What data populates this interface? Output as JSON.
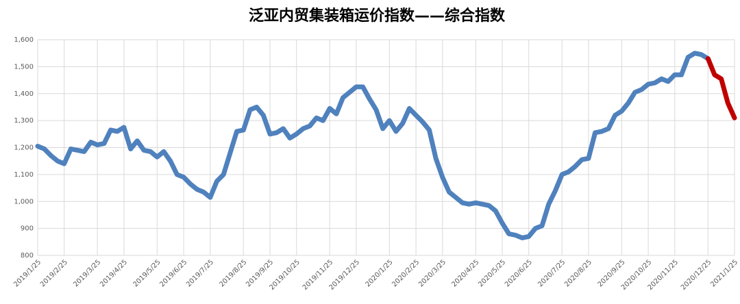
{
  "chart_data": {
    "type": "line",
    "title": "泛亚内贸集装箱运价指数——综合指数",
    "categories": [
      "2019/1/25",
      null,
      null,
      null,
      "2019/2/25",
      null,
      null,
      null,
      null,
      "2019/3/25",
      null,
      null,
      null,
      "2019/4/25",
      null,
      null,
      null,
      null,
      "2019/5/25",
      null,
      null,
      null,
      "2019/6/25",
      null,
      null,
      null,
      "2019/7/25",
      null,
      null,
      null,
      null,
      "2019/8/25",
      null,
      null,
      null,
      "2019/9/25",
      null,
      null,
      null,
      "2019/10/25",
      null,
      null,
      null,
      null,
      "2019/11/25",
      null,
      null,
      null,
      "2019/12/25",
      null,
      null,
      null,
      null,
      "2020/1/25",
      null,
      null,
      null,
      "2020/2/25",
      null,
      null,
      null,
      "2020/3/25",
      null,
      null,
      null,
      null,
      "2020/4/25",
      null,
      null,
      null,
      "2020/5/25",
      null,
      null,
      null,
      "2020/6/25",
      null,
      null,
      null,
      null,
      "2020/7/25",
      null,
      null,
      null,
      "2020/8/25",
      null,
      null,
      null,
      null,
      "2020/9/25",
      null,
      null,
      null,
      "2020/10/25",
      null,
      null,
      null,
      "2020/11/25",
      null,
      null,
      null,
      null,
      "2020/12/25",
      null,
      null,
      null,
      "2021/1/25"
    ],
    "series": [
      {
        "color": "#4f81bd",
        "values": [
          1205,
          1195,
          1170,
          1150,
          1140,
          1195,
          1190,
          1185,
          1220,
          1210,
          1215,
          1265,
          1260,
          1275,
          1195,
          1225,
          1190,
          1185,
          1165,
          1185,
          1150,
          1100,
          1090,
          1065,
          1045,
          1035,
          1015,
          1075,
          1100,
          1180,
          1260,
          1265,
          1340,
          1350,
          1320,
          1250,
          1255,
          1270,
          1235,
          1250,
          1270,
          1280,
          1310,
          1300,
          1345,
          1325,
          1385,
          1405,
          1425,
          1425,
          1380,
          1340,
          1270,
          1300,
          1260,
          1290,
          1345,
          1320,
          1295,
          1265,
          1160,
          1090,
          1035,
          1015,
          995,
          990,
          995,
          990,
          985,
          965,
          920,
          880,
          875,
          865,
          870,
          900,
          910,
          990,
          1040,
          1100,
          1110,
          1130,
          1155,
          1160,
          1255,
          1260,
          1270,
          1320,
          1335,
          1365,
          1405,
          1415,
          1435,
          1440,
          1455,
          1445,
          1470,
          1470,
          1535,
          1550,
          1545,
          1530,
          null,
          null,
          null,
          null
        ]
      },
      {
        "color": "#c00000",
        "values": [
          null,
          null,
          null,
          null,
          null,
          null,
          null,
          null,
          null,
          null,
          null,
          null,
          null,
          null,
          null,
          null,
          null,
          null,
          null,
          null,
          null,
          null,
          null,
          null,
          null,
          null,
          null,
          null,
          null,
          null,
          null,
          null,
          null,
          null,
          null,
          null,
          null,
          null,
          null,
          null,
          null,
          null,
          null,
          null,
          null,
          null,
          null,
          null,
          null,
          null,
          null,
          null,
          null,
          null,
          null,
          null,
          null,
          null,
          null,
          null,
          null,
          null,
          null,
          null,
          null,
          null,
          null,
          null,
          null,
          null,
          null,
          null,
          null,
          null,
          null,
          null,
          null,
          null,
          null,
          null,
          null,
          null,
          null,
          null,
          null,
          null,
          null,
          null,
          null,
          null,
          null,
          null,
          null,
          null,
          null,
          null,
          null,
          null,
          null,
          null,
          null,
          1530,
          1470,
          1455,
          1365,
          1310
        ]
      }
    ],
    "ylim": [
      800,
      1600
    ],
    "yticks": [
      800,
      900,
      {
        "value": 1000,
        "label": "1,000"
      },
      {
        "value": 1100,
        "label": "1,100"
      },
      {
        "value": 1200,
        "label": "1,200"
      },
      {
        "value": 1300,
        "label": "1,300"
      },
      {
        "value": 1400,
        "label": "1,400"
      },
      {
        "value": 1500,
        "label": "1,500"
      },
      {
        "value": 1600,
        "label": "1,600"
      }
    ],
    "grid": true
  }
}
